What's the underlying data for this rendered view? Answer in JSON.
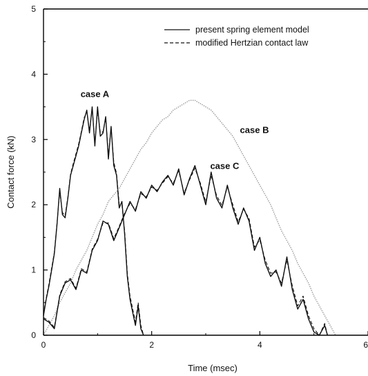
{
  "chart_data": {
    "type": "line",
    "title": "",
    "xlabel": "Time (msec)",
    "ylabel": "Contact force (kN)",
    "xlim": [
      0,
      6
    ],
    "ylim": [
      0,
      5
    ],
    "xticks": [
      0,
      2,
      4,
      6
    ],
    "yticks": [
      0,
      1,
      2,
      3,
      4,
      5
    ],
    "grid": false,
    "legend_position": "top-right",
    "legend": [
      {
        "label": "present spring element model",
        "style": "solid"
      },
      {
        "label": "modified Hertzian contact law",
        "style": "dashed"
      }
    ],
    "annotations": [
      {
        "text": "case A",
        "x": 0.95,
        "y": 3.65
      },
      {
        "text": "case B",
        "x": 3.9,
        "y": 3.1
      },
      {
        "text": "case C",
        "x": 3.35,
        "y": 2.55
      }
    ],
    "series": [
      {
        "case": "A",
        "model": "present spring element model",
        "style": "solid",
        "color": "#111111",
        "x": [
          0,
          0.05,
          0.1,
          0.15,
          0.2,
          0.25,
          0.3,
          0.35,
          0.4,
          0.45,
          0.5,
          0.55,
          0.6,
          0.65,
          0.7,
          0.75,
          0.8,
          0.85,
          0.9,
          0.95,
          1.0,
          1.05,
          1.1,
          1.15,
          1.2,
          1.25,
          1.3,
          1.35,
          1.4,
          1.45,
          1.5,
          1.55,
          1.6,
          1.65,
          1.7,
          1.75,
          1.8,
          1.85
        ],
        "y": [
          0.3,
          0.55,
          0.75,
          1.0,
          1.25,
          1.7,
          2.25,
          1.85,
          1.8,
          2.1,
          2.45,
          2.6,
          2.75,
          2.9,
          3.1,
          3.3,
          3.45,
          3.1,
          3.5,
          2.9,
          3.5,
          3.05,
          3.1,
          3.35,
          2.7,
          3.2,
          2.6,
          2.45,
          1.95,
          2.05,
          1.55,
          0.9,
          0.55,
          0.35,
          0.15,
          0.45,
          0.1,
          0.0
        ]
      },
      {
        "case": "A",
        "model": "modified Hertzian contact law",
        "style": "dashed",
        "color": "#111111",
        "x": [
          0,
          0.05,
          0.1,
          0.15,
          0.2,
          0.25,
          0.3,
          0.35,
          0.4,
          0.45,
          0.5,
          0.55,
          0.6,
          0.65,
          0.7,
          0.75,
          0.8,
          0.85,
          0.9,
          0.95,
          1.0,
          1.05,
          1.1,
          1.15,
          1.2,
          1.25,
          1.3,
          1.35,
          1.4,
          1.45,
          1.5,
          1.55,
          1.6,
          1.65,
          1.7,
          1.75,
          1.8,
          1.85
        ],
        "y": [
          0.32,
          0.57,
          0.78,
          1.03,
          1.27,
          1.72,
          2.2,
          1.88,
          1.83,
          2.12,
          2.47,
          2.63,
          2.78,
          2.93,
          3.12,
          3.33,
          3.42,
          3.14,
          3.47,
          2.95,
          3.45,
          3.1,
          3.12,
          3.32,
          2.75,
          3.18,
          2.65,
          2.48,
          2.0,
          2.0,
          1.6,
          0.95,
          0.6,
          0.4,
          0.2,
          0.5,
          0.15,
          0.0
        ]
      },
      {
        "case": "B",
        "model": "present spring element model",
        "style": "dotted",
        "color": "#9a9a9a",
        "x": [
          0,
          0.1,
          0.2,
          0.3,
          0.4,
          0.5,
          0.6,
          0.7,
          0.8,
          0.9,
          1.0,
          1.1,
          1.2,
          1.3,
          1.4,
          1.5,
          1.6,
          1.7,
          1.8,
          1.9,
          2.0,
          2.1,
          2.2,
          2.3,
          2.4,
          2.5,
          2.6,
          2.7,
          2.8,
          2.9,
          3.0,
          3.1,
          3.2,
          3.3,
          3.4,
          3.5,
          3.6,
          3.7,
          3.8,
          3.9,
          4.0,
          4.1,
          4.2,
          4.3,
          4.4,
          4.5,
          4.6,
          4.7,
          4.8,
          4.9,
          5.0,
          5.1,
          5.2,
          5.3,
          5.4
        ],
        "y": [
          0.0,
          0.15,
          0.3,
          0.5,
          0.65,
          0.8,
          1.0,
          1.15,
          1.3,
          1.5,
          1.7,
          1.85,
          2.05,
          2.15,
          2.25,
          2.4,
          2.55,
          2.7,
          2.85,
          2.95,
          3.1,
          3.2,
          3.3,
          3.35,
          3.45,
          3.5,
          3.55,
          3.6,
          3.6,
          3.55,
          3.5,
          3.45,
          3.35,
          3.25,
          3.15,
          3.05,
          2.9,
          2.75,
          2.6,
          2.45,
          2.3,
          2.15,
          2.0,
          1.8,
          1.6,
          1.45,
          1.3,
          1.1,
          0.95,
          0.8,
          0.6,
          0.45,
          0.3,
          0.15,
          0.0
        ]
      },
      {
        "case": "C",
        "model": "present spring element model",
        "style": "solid",
        "color": "#111111",
        "x": [
          0,
          0.1,
          0.2,
          0.3,
          0.4,
          0.5,
          0.6,
          0.7,
          0.8,
          0.9,
          1.0,
          1.1,
          1.2,
          1.3,
          1.4,
          1.5,
          1.6,
          1.7,
          1.8,
          1.9,
          2.0,
          2.1,
          2.2,
          2.3,
          2.4,
          2.5,
          2.6,
          2.7,
          2.8,
          2.9,
          3.0,
          3.1,
          3.2,
          3.3,
          3.4,
          3.5,
          3.6,
          3.7,
          3.8,
          3.9,
          4.0,
          4.1,
          4.2,
          4.3,
          4.4,
          4.5,
          4.6,
          4.7,
          4.8,
          4.9,
          5.0,
          5.1,
          5.2,
          5.25
        ],
        "y": [
          0.25,
          0.2,
          0.1,
          0.6,
          0.8,
          0.85,
          0.7,
          1.0,
          0.95,
          1.3,
          1.45,
          1.75,
          1.7,
          1.45,
          1.65,
          1.85,
          2.05,
          1.9,
          2.2,
          2.1,
          2.3,
          2.2,
          2.35,
          2.45,
          2.3,
          2.55,
          2.15,
          2.4,
          2.6,
          2.3,
          2.0,
          2.5,
          2.1,
          1.95,
          2.3,
          1.95,
          1.7,
          1.95,
          1.75,
          1.3,
          1.5,
          1.1,
          0.9,
          1.0,
          0.75,
          1.2,
          0.7,
          0.4,
          0.55,
          0.25,
          0.05,
          0.0,
          0.15,
          0.0
        ]
      },
      {
        "case": "C",
        "model": "modified Hertzian contact law",
        "style": "dashed",
        "color": "#111111",
        "x": [
          0,
          0.1,
          0.2,
          0.3,
          0.4,
          0.5,
          0.6,
          0.7,
          0.8,
          0.9,
          1.0,
          1.1,
          1.2,
          1.3,
          1.4,
          1.5,
          1.6,
          1.7,
          1.8,
          1.9,
          2.0,
          2.1,
          2.2,
          2.3,
          2.4,
          2.5,
          2.6,
          2.7,
          2.8,
          2.9,
          3.0,
          3.1,
          3.2,
          3.3,
          3.4,
          3.5,
          3.6,
          3.7,
          3.8,
          3.9,
          4.0,
          4.1,
          4.2,
          4.3,
          4.4,
          4.5,
          4.6,
          4.7,
          4.8,
          4.9,
          5.0,
          5.1,
          5.2,
          5.25
        ],
        "y": [
          0.27,
          0.22,
          0.12,
          0.62,
          0.82,
          0.87,
          0.72,
          1.02,
          0.97,
          1.32,
          1.47,
          1.72,
          1.72,
          1.48,
          1.67,
          1.87,
          2.02,
          1.93,
          2.17,
          2.12,
          2.27,
          2.22,
          2.33,
          2.43,
          2.33,
          2.52,
          2.18,
          2.38,
          2.56,
          2.33,
          2.04,
          2.45,
          2.14,
          1.99,
          2.27,
          2.0,
          1.74,
          1.93,
          1.79,
          1.35,
          1.46,
          1.15,
          0.95,
          0.97,
          0.8,
          1.15,
          0.76,
          0.45,
          0.6,
          0.3,
          0.1,
          0.0,
          0.18,
          0.0
        ]
      }
    ]
  }
}
